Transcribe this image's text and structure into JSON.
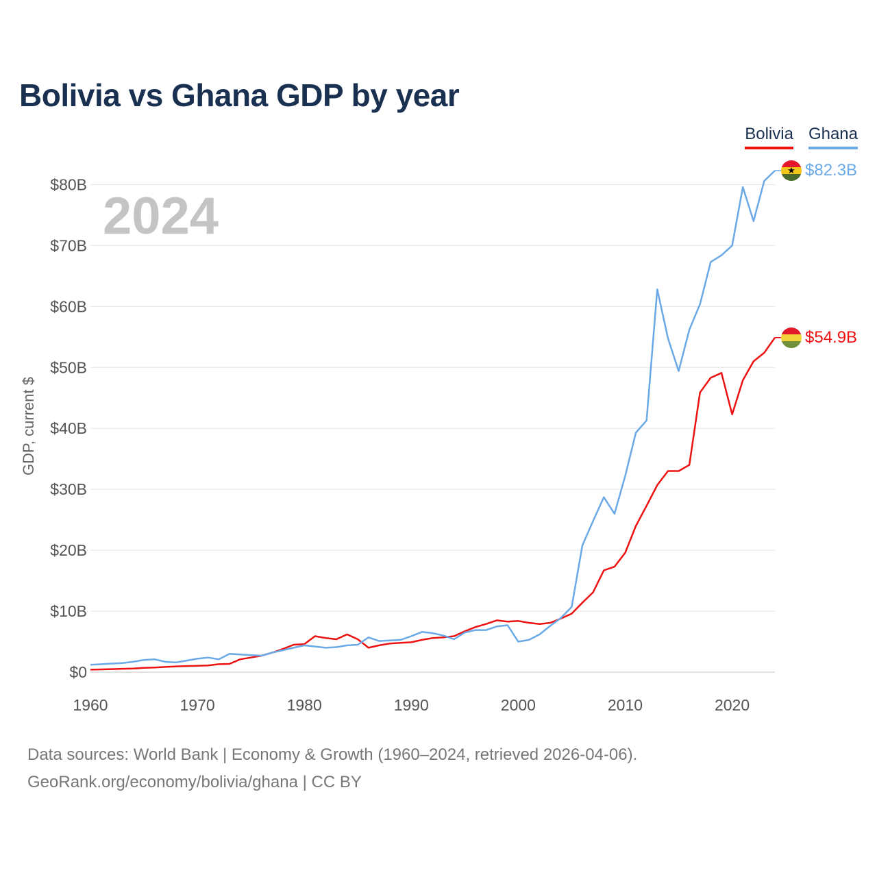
{
  "chart_data": {
    "type": "line",
    "title": "Bolivia vs Ghana GDP by year",
    "ylabel": "GDP, current $",
    "xlabel": "",
    "current_year_label": "2024",
    "ylim": [
      0,
      85
    ],
    "xlim": [
      1960,
      2024
    ],
    "y_ticks": [
      0,
      10,
      20,
      30,
      40,
      50,
      60,
      70,
      80
    ],
    "y_tick_labels": [
      "$0",
      "$10B",
      "$20B",
      "$30B",
      "$40B",
      "$50B",
      "$60B",
      "$70B",
      "$80B"
    ],
    "x_ticks": [
      1960,
      1970,
      1980,
      1990,
      2000,
      2010,
      2020
    ],
    "x_tick_labels": [
      "1960",
      "1970",
      "1980",
      "1990",
      "2000",
      "2010",
      "2020"
    ],
    "grid": true,
    "legend_position": "top-right",
    "x": [
      1960,
      1961,
      1962,
      1963,
      1964,
      1965,
      1966,
      1967,
      1968,
      1969,
      1970,
      1971,
      1972,
      1973,
      1974,
      1975,
      1976,
      1977,
      1978,
      1979,
      1980,
      1981,
      1982,
      1983,
      1984,
      1985,
      1986,
      1987,
      1988,
      1989,
      1990,
      1991,
      1992,
      1993,
      1994,
      1995,
      1996,
      1997,
      1998,
      1999,
      2000,
      2001,
      2002,
      2003,
      2004,
      2005,
      2006,
      2007,
      2008,
      2009,
      2010,
      2011,
      2012,
      2013,
      2014,
      2015,
      2016,
      2017,
      2018,
      2019,
      2020,
      2021,
      2022,
      2023,
      2024
    ],
    "series": [
      {
        "name": "Bolivia",
        "color": "#ee1111",
        "end_label": "$54.9B",
        "values": [
          0.4,
          0.45,
          0.5,
          0.55,
          0.6,
          0.7,
          0.75,
          0.85,
          0.95,
          1.0,
          1.05,
          1.1,
          1.3,
          1.35,
          2.1,
          2.4,
          2.7,
          3.2,
          3.8,
          4.5,
          4.6,
          5.9,
          5.6,
          5.4,
          6.2,
          5.4,
          4.0,
          4.4,
          4.7,
          4.8,
          4.9,
          5.3,
          5.6,
          5.7,
          5.9,
          6.7,
          7.4,
          7.9,
          8.5,
          8.3,
          8.4,
          8.1,
          7.9,
          8.1,
          8.8,
          9.6,
          11.4,
          13.1,
          16.7,
          17.3,
          19.6,
          24.0,
          27.3,
          30.7,
          33.0,
          33.0,
          34.0,
          45.9,
          48.3,
          49.1,
          42.3,
          47.9,
          51.0,
          52.4,
          54.9
        ]
      },
      {
        "name": "Ghana",
        "color": "#6aa9e6",
        "end_label": "$82.3B",
        "values": [
          1.2,
          1.3,
          1.4,
          1.5,
          1.7,
          2.0,
          2.1,
          1.7,
          1.6,
          1.9,
          2.2,
          2.4,
          2.1,
          3.0,
          2.9,
          2.8,
          2.7,
          3.2,
          3.6,
          4.0,
          4.4,
          4.2,
          4.0,
          4.1,
          4.4,
          4.5,
          5.7,
          5.1,
          5.2,
          5.3,
          5.9,
          6.6,
          6.4,
          6.0,
          5.4,
          6.5,
          6.9,
          6.9,
          7.5,
          7.7,
          5.0,
          5.3,
          6.2,
          7.6,
          8.9,
          10.7,
          20.8,
          24.8,
          28.7,
          26.0,
          32.2,
          39.3,
          41.3,
          62.8,
          54.8,
          49.4,
          56.2,
          60.4,
          67.3,
          68.4,
          70.0,
          79.6,
          74.0,
          80.6,
          82.3
        ]
      }
    ]
  },
  "legend": {
    "bolivia_label": "Bolivia",
    "ghana_label": "Ghana"
  },
  "footer": {
    "sources": "Data sources: World Bank | Economy & Growth (1960–2024, retrieved 2026-04-06).",
    "credit": "GeoRank.org/economy/bolivia/ghana | CC BY"
  },
  "flags": {
    "ghana": "ghana-flag-icon",
    "bolivia": "bolivia-flag-icon"
  }
}
